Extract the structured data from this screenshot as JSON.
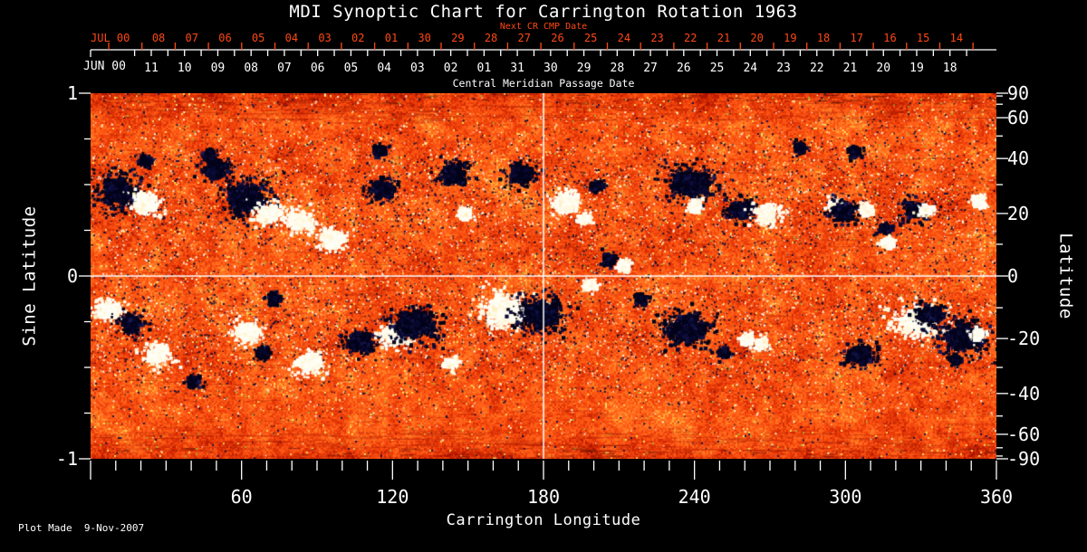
{
  "footer": {
    "plot_made": "Plot Made  9-Nov-2007"
  },
  "colors": {
    "background": "#000000",
    "axis_white": "#ffffff",
    "axis_red": "#ff4812",
    "quiet_sun_orange": "#f04a12",
    "negative_polarity": "#06061e",
    "positive_polarity": "#fffbe8"
  },
  "chart_data": {
    "type": "heatmap",
    "title": "MDI Synoptic Chart for Carrington Rotation 1963",
    "xlabel": "Carrington Longitude",
    "ylabel_left": "Sine Latitude",
    "ylabel_right": "Latitude",
    "xlim": [
      0,
      360
    ],
    "ylim_sine_latitude": [
      1,
      -1
    ],
    "x_major_ticks": [
      60,
      120,
      180,
      240,
      300,
      360
    ],
    "x_minor_tick_step_deg": 10,
    "left_major_ticks": [
      1,
      0,
      -1
    ],
    "left_minor_tick_step": 0.25,
    "right_tick_labels": [
      90,
      60,
      40,
      20,
      0,
      -20,
      -40,
      -60,
      -90
    ],
    "right_minor_ticks": [
      80,
      70,
      50,
      30,
      10,
      -10,
      -30,
      -50,
      -70,
      -80
    ],
    "top_axis_next_cr": {
      "label": "Next CR CMP Date",
      "month": "JUL 00",
      "days": [
        "08",
        "07",
        "06",
        "05",
        "04",
        "03",
        "02",
        "01",
        "30",
        "29",
        "28",
        "27",
        "26",
        "25",
        "24",
        "23",
        "22",
        "21",
        "20",
        "19",
        "18",
        "17",
        "16",
        "15",
        "14"
      ]
    },
    "top_axis_cmp": {
      "title": "Central Meridian Passage Date",
      "month": "JUN 00",
      "days": [
        "11",
        "10",
        "09",
        "08",
        "07",
        "06",
        "05",
        "04",
        "03",
        "02",
        "01",
        "31",
        "30",
        "29",
        "28",
        "27",
        "26",
        "25",
        "24",
        "23",
        "22",
        "21",
        "20",
        "19",
        "18"
      ]
    },
    "crosshair": {
      "longitude_deg": 180,
      "sine_latitude": 0
    },
    "colormap": {
      "description": "orange-red mottled quiet-sun background; dark navy-black patches = negative magnetic polarity; white-cream patches = positive magnetic polarity; darker streaked texture at poles"
    },
    "active_regions": [
      {
        "lon": 11,
        "slat": 0.46,
        "polarity": "negative",
        "size": "large"
      },
      {
        "lon": 22,
        "slat": 0.4,
        "polarity": "positive",
        "size": "medium"
      },
      {
        "lon": 22,
        "slat": 0.63,
        "polarity": "negative",
        "size": "small"
      },
      {
        "lon": 47,
        "slat": 0.66,
        "polarity": "negative",
        "size": "small"
      },
      {
        "lon": 50,
        "slat": 0.58,
        "polarity": "negative",
        "size": "medium"
      },
      {
        "lon": 62,
        "slat": 0.42,
        "polarity": "negative",
        "size": "large"
      },
      {
        "lon": 71,
        "slat": 0.34,
        "polarity": "positive",
        "size": "medium"
      },
      {
        "lon": 83,
        "slat": 0.3,
        "polarity": "positive",
        "size": "medium"
      },
      {
        "lon": 96,
        "slat": 0.2,
        "polarity": "positive",
        "size": "medium"
      },
      {
        "lon": 115,
        "slat": 0.68,
        "polarity": "negative",
        "size": "small"
      },
      {
        "lon": 116,
        "slat": 0.47,
        "polarity": "negative",
        "size": "medium"
      },
      {
        "lon": 144,
        "slat": 0.56,
        "polarity": "negative",
        "size": "medium"
      },
      {
        "lon": 149,
        "slat": 0.34,
        "polarity": "positive",
        "size": "small"
      },
      {
        "lon": 171,
        "slat": 0.56,
        "polarity": "negative",
        "size": "medium"
      },
      {
        "lon": 189,
        "slat": 0.4,
        "polarity": "positive",
        "size": "medium"
      },
      {
        "lon": 197,
        "slat": 0.31,
        "polarity": "positive",
        "size": "small"
      },
      {
        "lon": 201,
        "slat": 0.49,
        "polarity": "negative",
        "size": "small"
      },
      {
        "lon": 206,
        "slat": 0.09,
        "polarity": "negative",
        "size": "small"
      },
      {
        "lon": 212,
        "slat": 0.06,
        "polarity": "positive",
        "size": "small"
      },
      {
        "lon": 238,
        "slat": 0.51,
        "polarity": "negative",
        "size": "large"
      },
      {
        "lon": 240,
        "slat": 0.38,
        "polarity": "positive",
        "size": "small"
      },
      {
        "lon": 258,
        "slat": 0.36,
        "polarity": "negative",
        "size": "medium"
      },
      {
        "lon": 269,
        "slat": 0.34,
        "polarity": "positive",
        "size": "medium"
      },
      {
        "lon": 282,
        "slat": 0.7,
        "polarity": "negative",
        "size": "small"
      },
      {
        "lon": 296,
        "slat": 0.39,
        "polarity": "positive",
        "size": "small"
      },
      {
        "lon": 299,
        "slat": 0.35,
        "polarity": "negative",
        "size": "medium"
      },
      {
        "lon": 304,
        "slat": 0.68,
        "polarity": "negative",
        "size": "small"
      },
      {
        "lon": 308,
        "slat": 0.36,
        "polarity": "positive",
        "size": "small"
      },
      {
        "lon": 316,
        "slat": 0.26,
        "polarity": "negative",
        "size": "small"
      },
      {
        "lon": 317,
        "slat": 0.18,
        "polarity": "positive",
        "size": "small"
      },
      {
        "lon": 328,
        "slat": 0.36,
        "polarity": "negative",
        "size": "medium"
      },
      {
        "lon": 332,
        "slat": 0.36,
        "polarity": "positive",
        "size": "small"
      },
      {
        "lon": 353,
        "slat": 0.41,
        "polarity": "positive",
        "size": "small"
      },
      {
        "lon": 7,
        "slat": -0.19,
        "polarity": "positive",
        "size": "medium"
      },
      {
        "lon": 16,
        "slat": -0.26,
        "polarity": "negative",
        "size": "medium"
      },
      {
        "lon": 27,
        "slat": -0.43,
        "polarity": "positive",
        "size": "medium"
      },
      {
        "lon": 41,
        "slat": -0.58,
        "polarity": "negative",
        "size": "small"
      },
      {
        "lon": 62,
        "slat": -0.31,
        "polarity": "positive",
        "size": "medium"
      },
      {
        "lon": 69,
        "slat": -0.42,
        "polarity": "negative",
        "size": "small"
      },
      {
        "lon": 73,
        "slat": -0.13,
        "polarity": "negative",
        "size": "small"
      },
      {
        "lon": 87,
        "slat": -0.48,
        "polarity": "positive",
        "size": "medium"
      },
      {
        "lon": 107,
        "slat": -0.36,
        "polarity": "negative",
        "size": "medium"
      },
      {
        "lon": 121,
        "slat": -0.33,
        "polarity": "positive",
        "size": "medium"
      },
      {
        "lon": 129,
        "slat": -0.27,
        "polarity": "negative",
        "size": "large"
      },
      {
        "lon": 143,
        "slat": -0.48,
        "polarity": "positive",
        "size": "small"
      },
      {
        "lon": 165,
        "slat": -0.19,
        "polarity": "positive",
        "size": "large"
      },
      {
        "lon": 179,
        "slat": -0.21,
        "polarity": "negative",
        "size": "large"
      },
      {
        "lon": 199,
        "slat": -0.05,
        "polarity": "positive",
        "size": "small"
      },
      {
        "lon": 219,
        "slat": -0.13,
        "polarity": "negative",
        "size": "small"
      },
      {
        "lon": 237,
        "slat": -0.29,
        "polarity": "negative",
        "size": "large"
      },
      {
        "lon": 252,
        "slat": -0.42,
        "polarity": "negative",
        "size": "small"
      },
      {
        "lon": 261,
        "slat": -0.35,
        "polarity": "positive",
        "size": "small"
      },
      {
        "lon": 267,
        "slat": -0.37,
        "polarity": "positive",
        "size": "small"
      },
      {
        "lon": 306,
        "slat": -0.43,
        "polarity": "negative",
        "size": "medium"
      },
      {
        "lon": 329,
        "slat": -0.25,
        "polarity": "positive",
        "size": "large"
      },
      {
        "lon": 334,
        "slat": -0.22,
        "polarity": "negative",
        "size": "medium"
      },
      {
        "lon": 344,
        "slat": -0.46,
        "polarity": "negative",
        "size": "small"
      },
      {
        "lon": 347,
        "slat": -0.33,
        "polarity": "negative",
        "size": "large"
      },
      {
        "lon": 353,
        "slat": -0.32,
        "polarity": "positive",
        "size": "small"
      }
    ]
  }
}
